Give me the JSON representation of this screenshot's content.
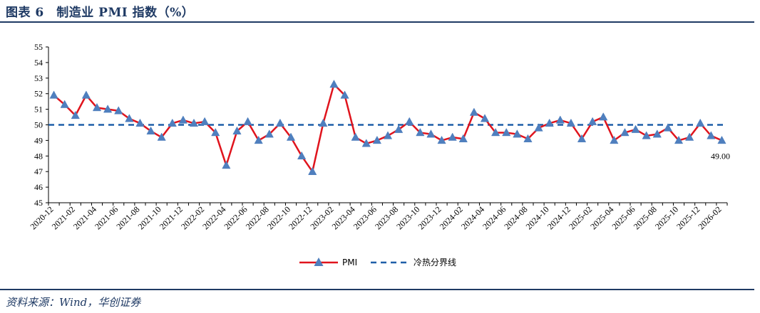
{
  "header": {
    "title": "图表 6　制造业 PMI 指数（%）"
  },
  "footer": {
    "source": "资料来源：Wind，华创证券"
  },
  "colors": {
    "pmi_line": "#e0141d",
    "pmi_marker": "#4f7fbe",
    "threshold": "#1f5fa8",
    "rule": "#1f3a64"
  },
  "chart_data": {
    "type": "line",
    "title": "",
    "xlabel": "",
    "ylabel": "",
    "ylim": [
      45,
      55
    ],
    "yticks": [
      45,
      46,
      47,
      48,
      49,
      50,
      51,
      52,
      53,
      54,
      55
    ],
    "x": [
      "2020-12",
      "2021-01",
      "2021-02",
      "2021-03",
      "2021-04",
      "2021-05",
      "2021-06",
      "2021-07",
      "2021-08",
      "2021-09",
      "2021-10",
      "2021-11",
      "2021-12",
      "2022-01",
      "2022-02",
      "2022-03",
      "2022-04",
      "2022-05",
      "2022-06",
      "2022-07",
      "2022-08",
      "2022-09",
      "2022-10",
      "2022-11",
      "2022-12",
      "2023-01",
      "2023-02",
      "2023-03",
      "2023-04",
      "2023-05",
      "2023-06",
      "2023-07",
      "2023-08",
      "2023-09",
      "2023-10",
      "2023-11",
      "2023-12",
      "2024-01",
      "2024-02",
      "2024-03",
      "2024-04",
      "2024-05",
      "2024-06",
      "2024-07",
      "2024-08",
      "2024-09",
      "2024-10",
      "2024-11",
      "2024-12",
      "2025-01",
      "2025-02",
      "2025-03",
      "2025-04",
      "2025-05",
      "2025-06",
      "2025-07",
      "2025-08",
      "2025-09",
      "2025-10",
      "2025-11",
      "2025-12",
      "2026-01",
      "2026-02"
    ],
    "x_tick_labels": [
      "2020-12",
      "2021-02",
      "2021-04",
      "2021-06",
      "2021-08",
      "2021-10",
      "2021-12",
      "2022-02",
      "2022-04",
      "2022-06",
      "2022-08",
      "2022-10",
      "2022-12",
      "2023-02",
      "2023-04",
      "2023-06",
      "2023-08",
      "2023-10",
      "2023-12",
      "2024-02",
      "2024-04",
      "2024-06",
      "2024-08",
      "2024-10",
      "2024-12",
      "2025-02",
      "2025-04",
      "2025-06",
      "2025-08",
      "2025-10",
      "2025-12",
      "2026-02"
    ],
    "series": [
      {
        "name": "PMI",
        "marker": "triangle",
        "values": [
          51.9,
          51.3,
          50.6,
          51.9,
          51.1,
          51.0,
          50.9,
          50.4,
          50.1,
          49.6,
          49.2,
          50.1,
          50.3,
          50.1,
          50.2,
          49.5,
          47.4,
          49.6,
          50.2,
          49.0,
          49.4,
          50.1,
          49.2,
          48.0,
          47.0,
          50.1,
          52.6,
          51.9,
          49.2,
          48.8,
          49.0,
          49.3,
          49.7,
          50.2,
          49.5,
          49.4,
          49.0,
          49.2,
          49.1,
          50.8,
          50.4,
          49.5,
          49.5,
          49.4,
          49.1,
          49.8,
          50.1,
          50.3,
          50.1,
          49.1,
          50.2,
          50.5,
          49.0,
          49.5,
          49.7,
          49.3,
          49.4,
          49.8,
          49.0,
          49.2,
          50.1,
          49.3,
          49.0
        ]
      },
      {
        "name": "冷热分界线",
        "style": "dashed",
        "value": 50
      }
    ],
    "annotations": [
      {
        "text": "49.00",
        "x": "2026-02",
        "y": 49.0
      }
    ],
    "legend": {
      "position": "bottom-center"
    },
    "grid": false
  }
}
